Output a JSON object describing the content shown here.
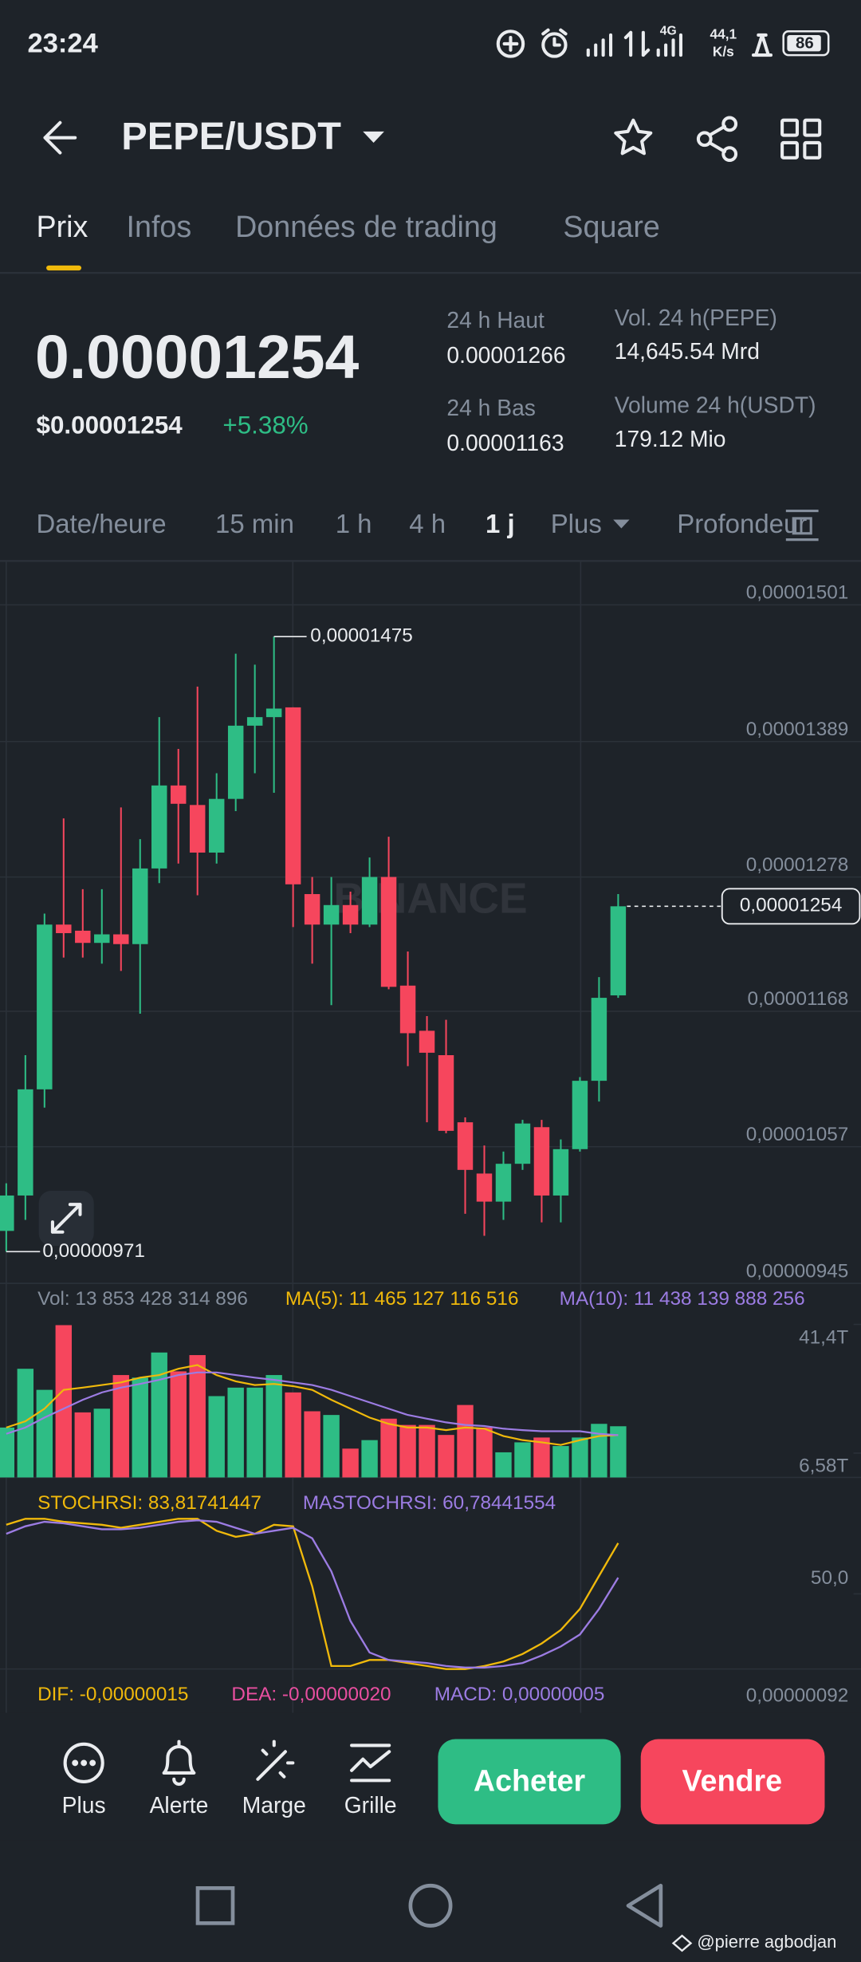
{
  "status_bar": {
    "time": "23:24",
    "network": "4G",
    "speed": "44,1",
    "speed_unit": "K/s",
    "battery": "86"
  },
  "header": {
    "pair": "PEPE/USDT"
  },
  "tabs": [
    "Prix",
    "Infos",
    "Données de trading",
    "Square"
  ],
  "price": {
    "last": "0.00001254",
    "usd": "$0.00001254",
    "change": "+5.38%"
  },
  "stats": [
    {
      "label": "24 h Haut",
      "value": "0.00001266"
    },
    {
      "label": "24 h Bas",
      "value": "0.00001163"
    },
    {
      "label": "Vol. 24 h(PEPE)",
      "value": "14,645.54 Mrd"
    },
    {
      "label": "Volume 24 h(USDT)",
      "value": "179.12 Mio"
    }
  ],
  "intervals": [
    "Date/heure",
    "15 min",
    "1 h",
    "4 h",
    "1 j",
    "Plus",
    "Profondeur"
  ],
  "watermark": "BINANCE",
  "chart_data": [
    {
      "type": "candlestick",
      "up_color": "#2ebd85",
      "down_color": "#f6465d",
      "open": [
        9.88e-06,
        1.017e-05,
        1.104e-05,
        1.239e-05,
        1.234e-05,
        1.224e-05,
        1.231e-05,
        1.223e-05,
        1.285e-05,
        1.353e-05,
        1.337e-05,
        1.298e-05,
        1.342e-05,
        1.402e-05,
        1.409e-05,
        1.417e-05,
        1.264e-05,
        1.239e-05,
        1.255e-05,
        1.239e-05,
        1.278e-05,
        1.189e-05,
        1.152e-05,
        1.132e-05,
        1.077e-05,
        1.035e-05,
        1.012e-05,
        1.043e-05,
        1.073e-05,
        1.017e-05,
        1.055e-05,
        1.111e-05,
        1.181e-05
      ],
      "high": [
        1.027e-05,
        1.132e-05,
        1.248e-05,
        1.326e-05,
        1.268e-05,
        1.268e-05,
        1.335e-05,
        1.309e-05,
        1.409e-05,
        1.383e-05,
        1.434e-05,
        1.363e-05,
        1.461e-05,
        1.452e-05,
        1.475e-05,
        1.417e-05,
        1.278e-05,
        1.278e-05,
        1.266e-05,
        1.294e-05,
        1.311e-05,
        1.217e-05,
        1.164e-05,
        1.161e-05,
        1.081e-05,
        1.058e-05,
        1.053e-05,
        1.079e-05,
        1.079e-05,
        1.063e-05,
        1.114e-05,
        1.196e-05,
        1.264e-05
      ],
      "low": [
        9.71e-06,
        9.97e-06,
        1.089e-05,
        1.212e-05,
        1.212e-05,
        1.207e-05,
        1.201e-05,
        1.166e-05,
        1.273e-05,
        1.289e-05,
        1.263e-05,
        1.289e-05,
        1.332e-05,
        1.363e-05,
        1.347e-05,
        1.237e-05,
        1.207e-05,
        1.173e-05,
        1.232e-05,
        1.237e-05,
        1.186e-05,
        1.123e-05,
        1.077e-05,
        1.068e-05,
        1.002e-05,
        9.84e-06,
        9.97e-06,
        1.038e-05,
        9.95e-06,
        9.95e-06,
        1.053e-05,
        1.094e-05,
        1.179e-05
      ],
      "close": [
        1.017e-05,
        1.104e-05,
        1.239e-05,
        1.232e-05,
        1.224e-05,
        1.231e-05,
        1.223e-05,
        1.285e-05,
        1.353e-05,
        1.338e-05,
        1.298e-05,
        1.342e-05,
        1.402e-05,
        1.409e-05,
        1.416e-05,
        1.272e-05,
        1.239e-05,
        1.255e-05,
        1.239e-05,
        1.278e-05,
        1.188e-05,
        1.15e-05,
        1.134e-05,
        1.07e-05,
        1.038e-05,
        1.012e-05,
        1.043e-05,
        1.076e-05,
        1.017e-05,
        1.055e-05,
        1.111e-05,
        1.179e-05,
        1.254e-05
      ],
      "ylim": [
        9.45e-06,
        1.537e-05
      ],
      "yticks": [
        {
          "value": 1.501e-05,
          "label": "0,00001501"
        },
        {
          "value": 1.389e-05,
          "label": "0,00001389"
        },
        {
          "value": 1.278e-05,
          "label": "0,00001278"
        },
        {
          "value": 1.168e-05,
          "label": "0,00001168"
        },
        {
          "value": 1.057e-05,
          "label": "0,00001057"
        },
        {
          "value": 9.45e-06,
          "label": "0,00000945"
        }
      ],
      "grid": true,
      "max_label": {
        "value": 1.475e-05,
        "label": "0,00001475"
      },
      "min_label": {
        "value": 9.71e-06,
        "label": "0,00000971"
      },
      "last_label": {
        "value": 1.254e-05,
        "label": "0,00001254"
      }
    },
    {
      "type": "bar",
      "series": [
        {
          "name": "Vol: 13 853 428 314 896",
          "type": "bar",
          "color": "#848e9c",
          "values": [
            13.5,
            29.4,
            23.7,
            41.2,
            17.6,
            18.6,
            27.7,
            27.0,
            33.8,
            28.7,
            33.1,
            22.0,
            24.3,
            24.3,
            27.7,
            23.0,
            17.9,
            16.9,
            7.8,
            10.1,
            15.9,
            14.2,
            14.2,
            11.5,
            19.6,
            13.5,
            6.8,
            9.5,
            10.8,
            8.5,
            10.8,
            14.5,
            13.85
          ]
        },
        {
          "name": "MA(5): 11 465 127 116 516",
          "type": "line",
          "color": "#f0b90b",
          "values": [
            13.5,
            15.2,
            18.6,
            23.7,
            24.3,
            25,
            25.7,
            27,
            27.7,
            29.4,
            30.4,
            27.7,
            26,
            25,
            25.3,
            24.7,
            23.7,
            21,
            18.6,
            16.2,
            14.5,
            13.5,
            13.5,
            12.8,
            13.5,
            13.2,
            11.2,
            10.1,
            9.5,
            8.8,
            10.1,
            11.2,
            11.47
          ]
        },
        {
          "name": "MA(10): 11 438 139 888 256",
          "type": "line",
          "color": "#9c7ce3",
          "values": [
            11.8,
            13.5,
            16.2,
            18.6,
            21,
            23,
            24.3,
            25.3,
            26.4,
            27.7,
            28.4,
            28.4,
            27.7,
            27,
            26.4,
            25.7,
            25,
            23.7,
            22,
            20.3,
            18.6,
            16.9,
            15.9,
            14.9,
            14.2,
            13.9,
            13.2,
            12.8,
            12.5,
            12.5,
            12.5,
            11.8,
            11.44
          ]
        }
      ],
      "ylim": [
        0,
        42
      ],
      "yticks": [
        {
          "value": 41.4,
          "label": "41,4T"
        },
        {
          "value": 6.58,
          "label": "6,58T"
        }
      ]
    },
    {
      "type": "line",
      "series": [
        {
          "name": "STOCHRSI: 83,81741447",
          "color": "#f0b90b",
          "values": [
            96,
            100,
            100,
            98,
            97,
            96,
            94,
            96,
            98,
            100,
            100,
            92,
            88,
            90,
            96,
            95,
            55,
            2,
            2,
            6,
            6,
            4,
            2,
            0,
            0,
            2,
            5,
            10,
            17,
            26,
            40,
            62,
            83.82
          ]
        },
        {
          "name": "MASTOCHRSI: 60,78441554",
          "color": "#9c7ce3",
          "values": [
            90,
            95,
            98,
            97,
            95,
            93,
            93,
            94,
            96,
            98,
            99,
            98,
            94,
            90,
            92,
            94,
            87,
            65,
            32,
            11,
            6,
            5,
            4,
            2,
            1,
            1,
            2,
            4,
            9,
            15,
            23,
            40,
            60.78
          ]
        }
      ],
      "ylim": [
        0,
        100
      ],
      "yticks": [
        {
          "value": 50,
          "label": "50,0"
        }
      ]
    }
  ],
  "macd": {
    "legend": [
      {
        "text": "DIF: -0,00000015",
        "color": "#f0b90b"
      },
      {
        "text": "DEA: -0,00000020",
        "color": "#e84fa0"
      },
      {
        "text": "MACD: 0,00000005",
        "color": "#9c7ce3"
      }
    ],
    "axis_label": "0,00000092"
  },
  "actions": [
    "Plus",
    "Alerte",
    "Marge",
    "Grille"
  ],
  "buy": "Acheter",
  "sell": "Vendre",
  "credit": "@pierre agbodjan"
}
